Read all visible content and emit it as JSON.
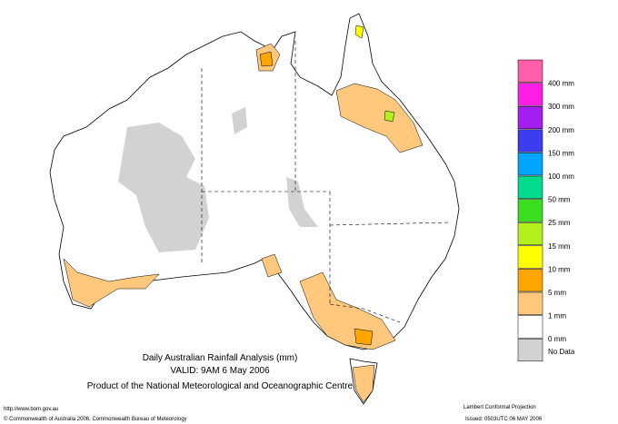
{
  "map": {
    "title": "Daily Australian Rainfall Analysis (mm)",
    "valid": "VALID: 9AM  6 May 2006",
    "producer": "Product of the National Meteorological and Oceanographic Centre",
    "url": "http://www.bom.gov.au",
    "copyright": "© Commonwealth of Australia 2006, Commonwealth Bureau of Meteorology",
    "projection": "Lambert Conformal Projection",
    "issued": "Issued: 0503UTC 06 MAY 2006"
  },
  "legend": {
    "swatches": [
      "#ff5fa8",
      "#ff1ee6",
      "#a51ef0",
      "#3c3cf0",
      "#00a5ff",
      "#00dc8c",
      "#3cdc1e",
      "#b4f01e",
      "#ffff00",
      "#ffa500",
      "#ffc87d",
      "#ffffff",
      "#d2d2d2"
    ],
    "labels": [
      "400 mm",
      "300 mm",
      "200 mm",
      "150 mm",
      "100 mm",
      "50 mm",
      "25 mm",
      "15 mm",
      "10 mm",
      "5 mm",
      "1 mm",
      "0 mm",
      "No Data"
    ]
  }
}
